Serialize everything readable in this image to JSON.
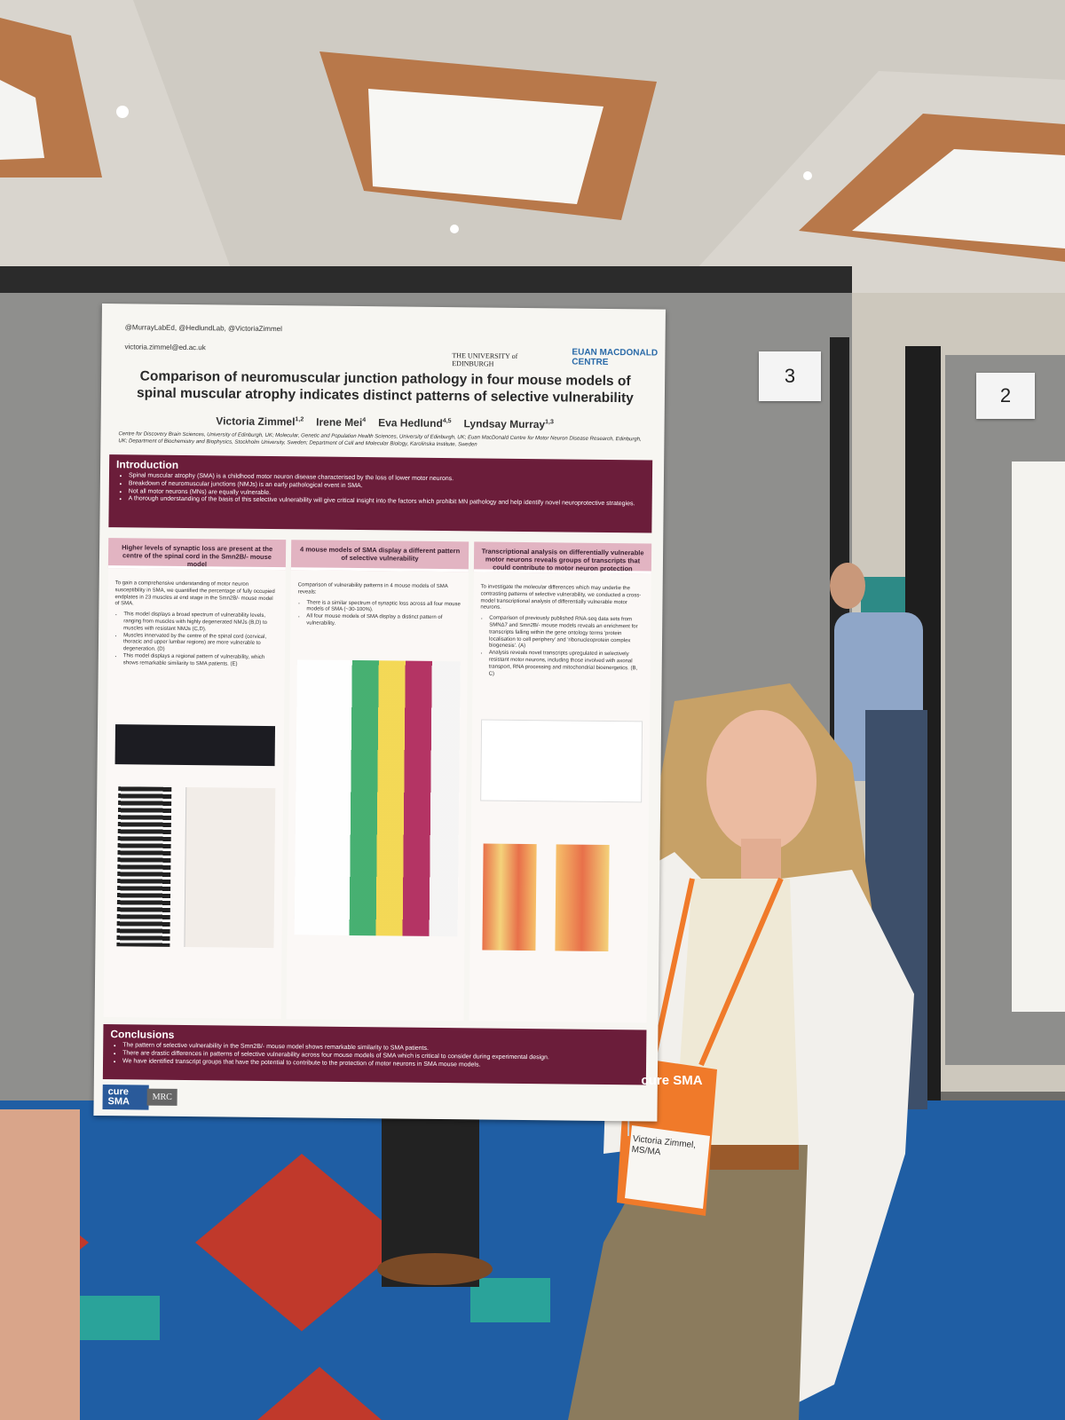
{
  "poster": {
    "handles": "@MurrayLabEd, @HedlundLab, @VictoriaZimmel",
    "email": "victoria.zimmel@ed.ac.uk",
    "logos": [
      "THE UNIVERSITY of EDINBURGH",
      "EUAN MACDONALD CENTRE"
    ],
    "title": "Comparison of neuromuscular junction pathology in four mouse models of spinal muscular atrophy indicates distinct patterns of selective vulnerability",
    "authors": [
      {
        "name": "Victoria Zimmel",
        "aff": "1,2"
      },
      {
        "name": "Irene Mei",
        "aff": "4"
      },
      {
        "name": "Eva Hedlund",
        "aff": "4,5"
      },
      {
        "name": "Lyndsay Murray",
        "aff": "1,3"
      }
    ],
    "affiliations": "Centre for Discovery Brain Sciences, University of Edinburgh, UK; Molecular, Genetic and Population Health Sciences, University of Edinburgh, UK; Euan MacDonald Centre for Motor Neuron Disease Research, Edinburgh, UK; Department of Biochemistry and Biophysics, Stockholm University, Sweden; Department of Cell and Molecular Biology, Karolinska Institute, Sweden",
    "introduction": {
      "heading": "Introduction",
      "bullets": [
        "Spinal muscular atrophy (SMA) is a childhood motor neuron disease characterised by the loss of lower motor neurons.",
        "Breakdown of neuromuscular junctions (NMJs) is an early pathological event in SMA.",
        "Not all motor neurons (MNs) are equally vulnerable.",
        "A thorough understanding of the basis of this selective vulnerability will give critical insight into the factors which prohibit MN pathology and help identify novel neuroprotective strategies."
      ]
    },
    "sections": [
      {
        "heading": "Higher levels of synaptic loss are present at the centre of the spinal cord in the Smn2B/- mouse model",
        "text": "To gain a comprehensive understanding of motor neuron susceptibility in SMA, we quantified the percentage of fully occupied endplates in 23 muscles at end stage in the Smn2B/- mouse model of SMA.",
        "bullets": [
          "This model displays a broad spectrum of vulnerability levels, ranging from muscles with highly degenerated NMJs (B,D) to muscles with resistant NMJs (C,D).",
          "Muscles innervated by the centre of the spinal cord (cervical, thoracic and upper lumbar regions) are more vulnerable to degeneration. (D)",
          "This model displays a regional pattern of vulnerability, which shows remarkable similarity to SMA patients. (E)"
        ]
      },
      {
        "heading": "4 mouse models of SMA display a different pattern of selective vulnerability",
        "text": "Comparison of vulnerability patterns in 4 mouse models of SMA reveals:",
        "bullets": [
          "There is a similar spectrum of synaptic loss across all four mouse models of SMA (~30-100%).",
          "All four mouse models of SMA display a distinct pattern of vulnerability."
        ]
      },
      {
        "heading": "Transcriptional analysis on differentially vulnerable motor neurons reveals groups of transcripts that could contribute to motor neuron protection",
        "text": "To investigate the molecular differences which may underlie the contrasting patterns of selective vulnerability, we conducted a cross-model transcriptional analysis of differentially vulnerable motor neurons.",
        "bullets": [
          "Comparison of previously published RNA-seq data sets from SMNΔ7 and Smn2B/- mouse models reveals an enrichment for transcripts falling within the gene ontology terms 'protein localisation to cell periphery' and 'ribonucleoprotein complex biogenesis'. (A)",
          "Analysis reveals novel transcripts upregulated in selectively resistant motor neurons, including those involved with axonal transport, RNA processing and mitochondrial bioenergetics. (B, C)"
        ]
      }
    ],
    "conclusions": {
      "heading": "Conclusions",
      "bullets": [
        "The pattern of selective vulnerability in the Smn2B/- mouse model shows remarkable similarity to SMA patients.",
        "There are drastic differences in patterns of selective vulnerability across four mouse models of SMA which is critical to consider during experimental design.",
        "We have identified transcript groups that have the potential to contribute to the protection of motor neurons in SMA mouse models."
      ]
    },
    "footer_logos": [
      "cure SMA",
      "MRC"
    ]
  },
  "board_numbers": [
    "3",
    "2"
  ],
  "badge": {
    "logo": "cure SMA",
    "name": "Victoria Zimmel, MS/MA"
  }
}
